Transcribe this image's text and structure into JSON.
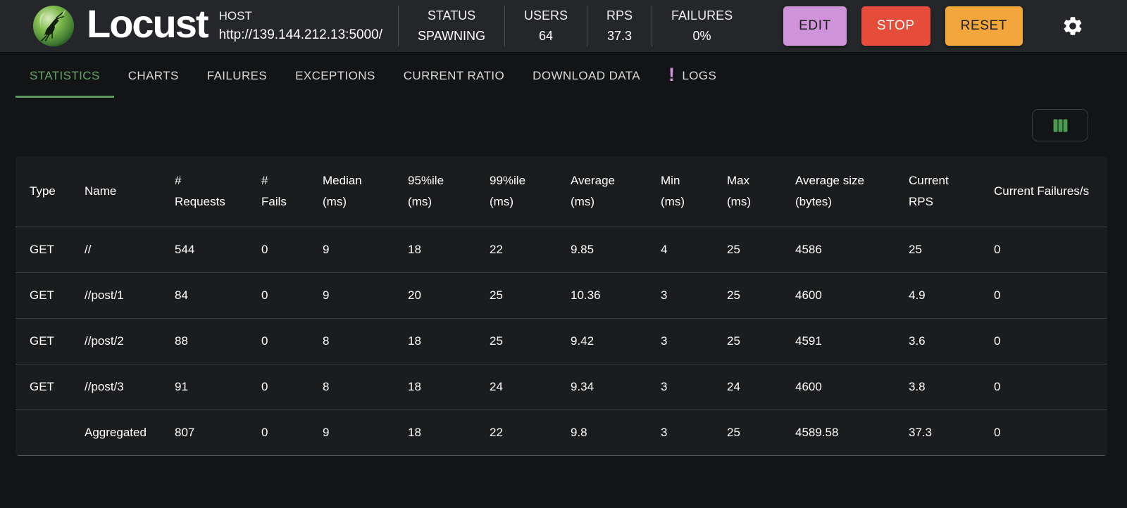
{
  "header": {
    "app_name": "Locust",
    "logo_icon": "locust-logo",
    "host": {
      "label": "HOST",
      "value": "http://139.144.212.13:5000/"
    },
    "stats": [
      {
        "label": "STATUS",
        "value": "SPAWNING"
      },
      {
        "label": "USERS",
        "value": "64"
      },
      {
        "label": "RPS",
        "value": "37.3"
      },
      {
        "label": "FAILURES",
        "value": "0%"
      }
    ],
    "buttons": [
      {
        "label": "EDIT"
      },
      {
        "label": "STOP"
      },
      {
        "label": "RESET"
      }
    ],
    "settings_icon": "gear-icon"
  },
  "tabs": [
    {
      "label": "STATISTICS",
      "active": true
    },
    {
      "label": "CHARTS",
      "active": false
    },
    {
      "label": "FAILURES",
      "active": false
    },
    {
      "label": "EXCEPTIONS",
      "active": false
    },
    {
      "label": "CURRENT RATIO",
      "active": false
    },
    {
      "label": "DOWNLOAD DATA",
      "active": false
    },
    {
      "label": "LOGS",
      "active": false,
      "badge": "!"
    }
  ],
  "toolbar": {
    "columns_button_icon": "table-columns-icon"
  },
  "table": {
    "columns": [
      "Type",
      "Name",
      "# Requests",
      "# Fails",
      "Median (ms)",
      "95%ile (ms)",
      "99%ile (ms)",
      "Average (ms)",
      "Min (ms)",
      "Max (ms)",
      "Average size (bytes)",
      "Current RPS",
      "Current Failures/s"
    ],
    "rows": [
      [
        "GET",
        "//",
        "544",
        "0",
        "9",
        "18",
        "22",
        "9.85",
        "4",
        "25",
        "4586",
        "25",
        "0"
      ],
      [
        "GET",
        "//post/1",
        "84",
        "0",
        "9",
        "20",
        "25",
        "10.36",
        "3",
        "25",
        "4600",
        "4.9",
        "0"
      ],
      [
        "GET",
        "//post/2",
        "88",
        "0",
        "8",
        "18",
        "25",
        "9.42",
        "3",
        "25",
        "4591",
        "3.6",
        "0"
      ],
      [
        "GET",
        "//post/3",
        "91",
        "0",
        "8",
        "18",
        "24",
        "9.34",
        "3",
        "24",
        "4600",
        "3.8",
        "0"
      ],
      [
        "",
        "Aggregated",
        "807",
        "0",
        "9",
        "18",
        "22",
        "9.8",
        "3",
        "25",
        "4589.58",
        "37.3",
        "0"
      ]
    ]
  },
  "colors": {
    "accent_green": "#5b995e",
    "columns_icon_green": "#4c9b52",
    "badge_purple": "#ce93d8",
    "edit_button": "#ce93d8",
    "stop_button": "#e54d3a",
    "reset_button": "#f2a63c",
    "header_bg": "#242629",
    "page_bg": "#131416",
    "card_bg": "#1b1c1e"
  }
}
